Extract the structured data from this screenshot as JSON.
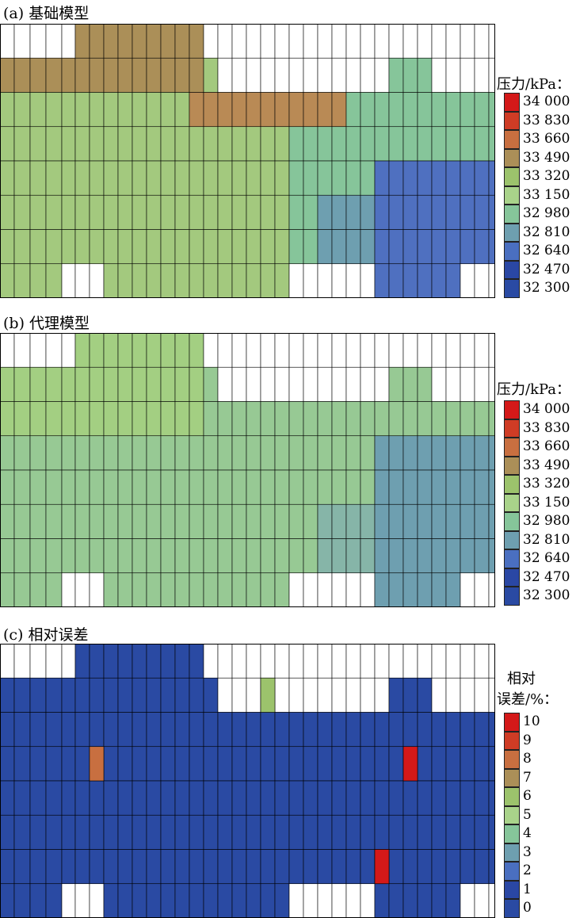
{
  "panels": [
    {
      "title": "(a) 基础模型",
      "legend_title": "压力/kPa：",
      "legend_labels": [
        "34 000",
        "33 830",
        "33 660",
        "33 490",
        "33 320",
        "33 150",
        "32 980",
        "32 810",
        "32 640",
        "32 470",
        "32 300"
      ]
    },
    {
      "title": "(b) 代理模型",
      "legend_title": "压力/kPa：",
      "legend_labels": [
        "34 000",
        "33 830",
        "33 660",
        "33 490",
        "33 320",
        "33 150",
        "32 980",
        "32 810",
        "32 640",
        "32 470",
        "32 300"
      ]
    },
    {
      "title": "(c) 相对误差",
      "legend_title_line1": "相对",
      "legend_title_line2": "误差/%：",
      "legend_labels": [
        "10",
        "9",
        "8",
        "7",
        "6",
        "5",
        "4",
        "3",
        "2",
        "1",
        "0"
      ]
    }
  ],
  "colors": {
    "scale": [
      "#d41919",
      "#cf3c25",
      "#c86f40",
      "#ab8f58",
      "#9cc36c",
      "#a9d38a",
      "#86c59a",
      "#6e9fb0",
      "#4a6fc0",
      "#2a47a4",
      "#2a4aa3"
    ],
    "grid": "#000000",
    "background": "#ffffff"
  },
  "chart_data": [
    {
      "type": "heatmap",
      "title": "(a) 基础模型",
      "colorbar_label": "压力/kPa",
      "colorbar_ticks": [
        34000,
        33830,
        33660,
        33490,
        33320,
        33150,
        32980,
        32810,
        32640,
        32470,
        32300
      ],
      "vrange": [
        32300,
        34000
      ],
      "grid": true,
      "legend_position": "right",
      "description_note": ""
    },
    {
      "type": "heatmap",
      "title": "(b) 代理模型",
      "colorbar_label": "压力/kPa",
      "colorbar_ticks": [
        34000,
        33830,
        33660,
        33490,
        33320,
        33150,
        32980,
        32810,
        32640,
        32470,
        32300
      ],
      "vrange": [
        32300,
        34000
      ],
      "grid": true,
      "legend_position": "right"
    },
    {
      "type": "heatmap",
      "title": "(c) 相对误差",
      "colorbar_label": "相对误差/%",
      "colorbar_ticks": [
        10,
        9,
        8,
        7,
        6,
        5,
        4,
        3,
        2,
        1,
        0
      ],
      "vrange": [
        0,
        10
      ],
      "grid": true,
      "legend_position": "right"
    }
  ]
}
